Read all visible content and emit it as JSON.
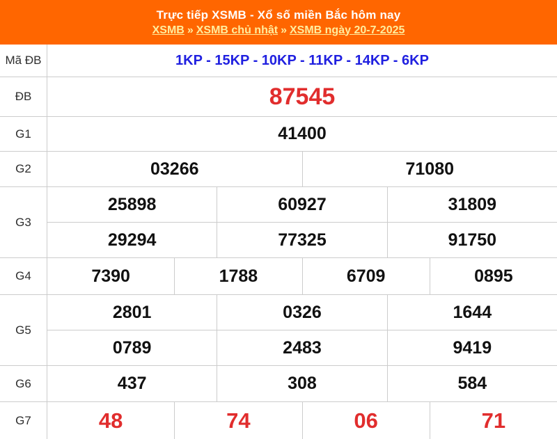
{
  "header": {
    "title": "Trực tiếp XSMB - Xổ số miền Bắc hôm nay",
    "breadcrumb": {
      "separator": "»",
      "links": [
        "XSMB",
        "XSMB chủ nhật",
        "XSMB ngày 20-7-2025"
      ]
    }
  },
  "colors": {
    "header_bg": "#FF6600",
    "breadcrumb_link": "#FFED9E",
    "code_blue": "#2020E0",
    "prize_red": "#E12D2D",
    "number_black": "#111111",
    "border_gray": "#CCCCCC"
  },
  "table": {
    "rows": [
      {
        "label": "Mã ĐB",
        "values": [
          "1KP - 15KP - 10KP - 11KP - 14KP - 6KP"
        ]
      },
      {
        "label": "ĐB",
        "values": [
          "87545"
        ]
      },
      {
        "label": "G1",
        "values": [
          "41400"
        ]
      },
      {
        "label": "G2",
        "values": [
          "03266",
          "71080"
        ]
      },
      {
        "label": "G3",
        "lines": [
          [
            "25898",
            "60927",
            "31809"
          ],
          [
            "29294",
            "77325",
            "91750"
          ]
        ]
      },
      {
        "label": "G4",
        "values": [
          "7390",
          "1788",
          "6709",
          "0895"
        ]
      },
      {
        "label": "G5",
        "lines": [
          [
            "2801",
            "0326",
            "1644"
          ],
          [
            "0789",
            "2483",
            "9419"
          ]
        ]
      },
      {
        "label": "G6",
        "values": [
          "437",
          "308",
          "584"
        ]
      },
      {
        "label": "G7",
        "values": [
          "48",
          "74",
          "06",
          "71"
        ]
      }
    ]
  }
}
